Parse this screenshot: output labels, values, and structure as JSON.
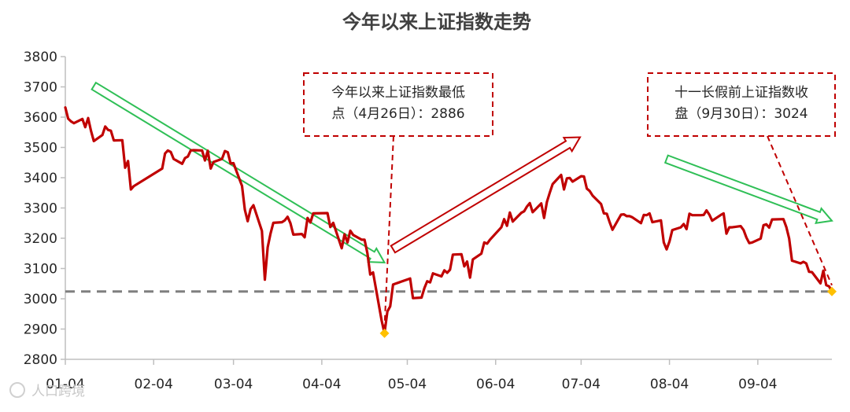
{
  "chart_data": {
    "type": "line",
    "title": "今年以来上证指数走势",
    "xlabel": "",
    "ylabel": "",
    "ylim": [
      2800,
      3800
    ],
    "yticks": [
      2800,
      2900,
      3000,
      3100,
      3200,
      3300,
      3400,
      3500,
      3600,
      3700,
      3800
    ],
    "x_tick_labels": [
      "01-04",
      "02-04",
      "03-04",
      "04-04",
      "05-04",
      "06-04",
      "07-04",
      "08-04",
      "09-04"
    ],
    "grid": false,
    "legend": "none",
    "series": [
      {
        "color": "#c00000",
        "x": [
          "01-04",
          "01-05",
          "01-06",
          "01-07",
          "01-10",
          "01-11",
          "01-12",
          "01-13",
          "01-14",
          "01-17",
          "01-18",
          "01-19",
          "01-20",
          "01-21",
          "01-24",
          "01-25",
          "01-26",
          "01-27",
          "01-28",
          "02-07",
          "02-08",
          "02-09",
          "02-10",
          "02-11",
          "02-14",
          "02-15",
          "02-16",
          "02-17",
          "02-18",
          "02-21",
          "02-22",
          "02-23",
          "02-24",
          "02-25",
          "02-28",
          "03-01",
          "03-02",
          "03-03",
          "03-04",
          "03-07",
          "03-08",
          "03-09",
          "03-10",
          "03-11",
          "03-14",
          "03-15",
          "03-16",
          "03-17",
          "03-18",
          "03-21",
          "03-22",
          "03-23",
          "03-24",
          "03-25",
          "03-28",
          "03-29",
          "03-30",
          "03-31",
          "04-01",
          "04-06",
          "04-07",
          "04-08",
          "04-11",
          "04-12",
          "04-13",
          "04-14",
          "04-15",
          "04-18",
          "04-19",
          "04-20",
          "04-21",
          "04-22",
          "04-25",
          "04-26",
          "04-27",
          "04-28",
          "04-29",
          "05-05",
          "05-06",
          "05-09",
          "05-10",
          "05-11",
          "05-12",
          "05-13",
          "05-16",
          "05-17",
          "05-18",
          "05-19",
          "05-20",
          "05-23",
          "05-24",
          "05-25",
          "05-26",
          "05-27",
          "05-30",
          "05-31",
          "06-01",
          "06-02",
          "06-06",
          "06-07",
          "06-08",
          "06-09",
          "06-10",
          "06-13",
          "06-14",
          "06-15",
          "06-16",
          "06-17",
          "06-20",
          "06-21",
          "06-22",
          "06-23",
          "06-24",
          "06-27",
          "06-28",
          "06-29",
          "06-30",
          "07-01",
          "07-04",
          "07-05",
          "07-06",
          "07-07",
          "07-08",
          "07-11",
          "07-12",
          "07-13",
          "07-14",
          "07-15",
          "07-18",
          "07-19",
          "07-20",
          "07-21",
          "07-22",
          "07-25",
          "07-26",
          "07-27",
          "07-28",
          "07-29",
          "08-01",
          "08-02",
          "08-03",
          "08-04",
          "08-05",
          "08-08",
          "08-09",
          "08-10",
          "08-11",
          "08-12",
          "08-15",
          "08-16",
          "08-17",
          "08-18",
          "08-19",
          "08-22",
          "08-23",
          "08-24",
          "08-25",
          "08-26",
          "08-29",
          "08-30",
          "08-31",
          "09-01",
          "09-02",
          "09-05",
          "09-06",
          "09-07",
          "09-08",
          "09-09",
          "09-13",
          "09-14",
          "09-15",
          "09-16",
          "09-19",
          "09-20",
          "09-21",
          "09-22",
          "09-23",
          "09-26",
          "09-27",
          "09-28",
          "09-29",
          "09-30"
        ],
        "y": [
          3632,
          3595,
          3586,
          3580,
          3594,
          3567,
          3597,
          3555,
          3521,
          3541,
          3569,
          3558,
          3555,
          3523,
          3524,
          3433,
          3455,
          3361,
          3372,
          3430,
          3480,
          3490,
          3485,
          3462,
          3446,
          3465,
          3470,
          3490,
          3491,
          3490,
          3457,
          3489,
          3430,
          3452,
          3462,
          3488,
          3484,
          3447,
          3448,
          3373,
          3294,
          3256,
          3296,
          3309,
          3224,
          3063,
          3170,
          3215,
          3251,
          3253,
          3259,
          3271,
          3250,
          3212,
          3214,
          3203,
          3267,
          3252,
          3282,
          3283,
          3237,
          3251,
          3167,
          3213,
          3186,
          3225,
          3211,
          3195,
          3195,
          3151,
          3080,
          3087,
          2928,
          2886,
          2958,
          2975,
          3047,
          3067,
          3002,
          3004,
          3035,
          3058,
          3054,
          3084,
          3074,
          3094,
          3086,
          3096,
          3146,
          3147,
          3107,
          3123,
          3070,
          3130,
          3149,
          3186,
          3182,
          3195,
          3236,
          3263,
          3241,
          3285,
          3255,
          3284,
          3289,
          3305,
          3316,
          3286,
          3315,
          3267,
          3320,
          3350,
          3379,
          3409,
          3361,
          3398,
          3399,
          3387,
          3405,
          3404,
          3364,
          3356,
          3341,
          3313,
          3282,
          3281,
          3253,
          3228,
          3278,
          3279,
          3273,
          3273,
          3269,
          3250,
          3277,
          3276,
          3282,
          3253,
          3259,
          3186,
          3163,
          3189,
          3227,
          3236,
          3247,
          3230,
          3281,
          3276,
          3276,
          3277,
          3292,
          3278,
          3258,
          3277,
          3282,
          3215,
          3236,
          3236,
          3240,
          3227,
          3202,
          3184,
          3186,
          3199,
          3243,
          3246,
          3235,
          3262,
          3263,
          3237,
          3199,
          3126,
          3117,
          3122,
          3117,
          3089,
          3088,
          3051,
          3093,
          3045,
          3041,
          3024
        ]
      }
    ],
    "reference_lines": [
      {
        "axis": "y",
        "value": 3024,
        "style": "dashed",
        "color": "#7f7f7f"
      }
    ],
    "highlight_points": [
      {
        "x": "04-26",
        "y": 2886,
        "color": "#ffc000"
      },
      {
        "x": "09-30",
        "y": 3024,
        "color": "#ffc000"
      }
    ],
    "annotations": [
      {
        "id": "low",
        "lines": [
          "今年以来上证指数最低",
          "点（4月26日）：2886"
        ],
        "target": "04-26"
      },
      {
        "id": "close",
        "lines": [
          "十一长假前上证指数收",
          "盘（9月30日）：3024"
        ],
        "target": "09-30"
      }
    ],
    "trend_arrows": [
      {
        "from": "01-14",
        "to": "04-26",
        "color": "#2fbf56",
        "direction": "down"
      },
      {
        "from": "04-29",
        "to": "07-05",
        "color": "#c00000",
        "direction": "up"
      },
      {
        "from": "08-03",
        "to": "09-30",
        "color": "#2fbf56",
        "direction": "down"
      }
    ]
  },
  "watermark": "人口跨境"
}
